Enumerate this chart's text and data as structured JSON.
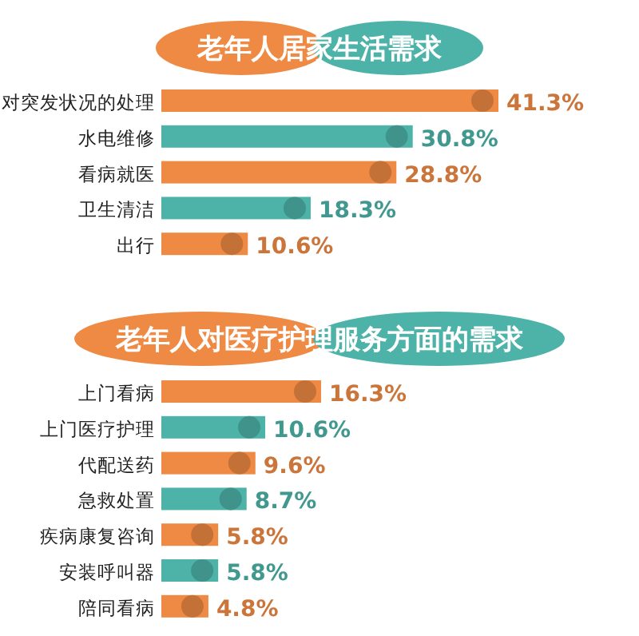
{
  "chart_data": [
    {
      "type": "bar",
      "orientation": "horizontal",
      "title": "老年人居家生活需求",
      "categories": [
        "对突发状况的处理",
        "水电维修",
        "看病就医",
        "卫生清洁",
        "出行"
      ],
      "values": [
        41.3,
        30.8,
        28.8,
        18.3,
        10.6
      ],
      "value_labels": [
        "41.3%",
        "30.8%",
        "28.8%",
        "18.3%",
        "10.6%"
      ],
      "colors": [
        "#ef8a44",
        "#4db3a8",
        "#ef8a44",
        "#4db3a8",
        "#ef8a44"
      ]
    },
    {
      "type": "bar",
      "orientation": "horizontal",
      "title": "老年人对医疗护理服务方面的需求",
      "categories": [
        "上门看病",
        "上门医疗护理",
        "代配送药",
        "急救处置",
        "疾病康复咨询",
        "安装呼叫器",
        "陪同看病"
      ],
      "values": [
        16.3,
        10.6,
        9.6,
        8.7,
        5.8,
        5.8,
        4.8
      ],
      "value_labels": [
        "16.3%",
        "10.6%",
        "9.6%",
        "8.7%",
        "5.8%",
        "5.8%",
        "4.8%"
      ],
      "colors": [
        "#ef8a44",
        "#4db3a8",
        "#ef8a44",
        "#4db3a8",
        "#ef8a44",
        "#4db3a8",
        "#ef8a44"
      ]
    }
  ]
}
